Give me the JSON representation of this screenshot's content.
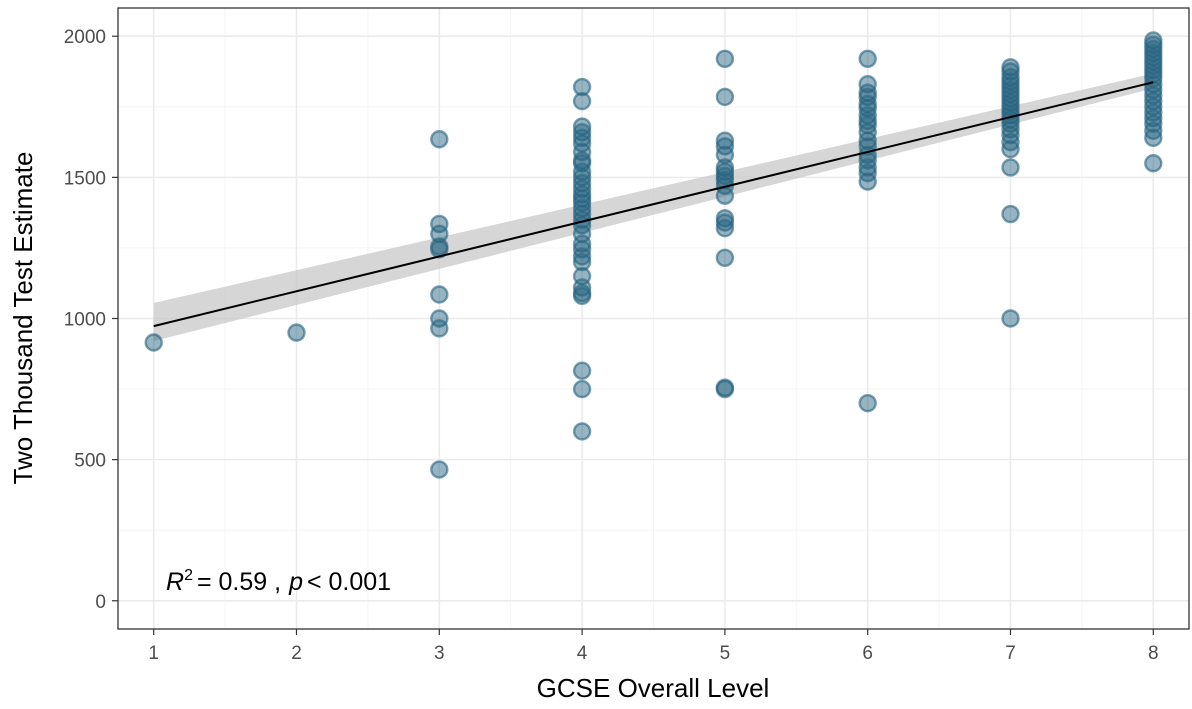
{
  "chart_data": {
    "type": "scatter",
    "title": "",
    "xlabel": "GCSE Overall Level",
    "ylabel": "Two Thousand Test Estimate",
    "xlim": [
      0.75,
      8.25
    ],
    "ylim": [
      -100,
      2100
    ],
    "x_ticks": [
      1,
      2,
      3,
      4,
      5,
      6,
      7,
      8
    ],
    "y_ticks": [
      0,
      500,
      1000,
      1500,
      2000
    ],
    "grid": true,
    "legend": "none",
    "colors": {
      "point_fill": "#2e6a85",
      "point_stroke": "#24627f",
      "fit_line": "#000000",
      "confidence_band": "#c8c8c8",
      "grid_major": "#ebebeb",
      "grid_minor": "#f5f5f5",
      "panel_border": "#333333"
    },
    "annotation": {
      "r_symbol": "R",
      "r_exponent": "2",
      "r_value": "= 0.59 ,",
      "p_symbol": "p",
      "p_value": "< 0.001"
    },
    "series": [
      {
        "points": [
          [
            1,
            915
          ],
          [
            2,
            950
          ],
          [
            3,
            465
          ],
          [
            3,
            965
          ],
          [
            3,
            1000
          ],
          [
            3,
            1085
          ],
          [
            3,
            1245
          ],
          [
            3,
            1255
          ],
          [
            3,
            1300
          ],
          [
            3,
            1335
          ],
          [
            3,
            1635
          ],
          [
            4,
            600
          ],
          [
            4,
            750
          ],
          [
            4,
            815
          ],
          [
            4,
            1080
          ],
          [
            4,
            1090
          ],
          [
            4,
            1110
          ],
          [
            4,
            1150
          ],
          [
            4,
            1200
          ],
          [
            4,
            1220
          ],
          [
            4,
            1245
          ],
          [
            4,
            1265
          ],
          [
            4,
            1300
          ],
          [
            4,
            1330
          ],
          [
            4,
            1350
          ],
          [
            4,
            1370
          ],
          [
            4,
            1390
          ],
          [
            4,
            1410
          ],
          [
            4,
            1425
          ],
          [
            4,
            1440
          ],
          [
            4,
            1460
          ],
          [
            4,
            1480
          ],
          [
            4,
            1500
          ],
          [
            4,
            1520
          ],
          [
            4,
            1550
          ],
          [
            4,
            1560
          ],
          [
            4,
            1590
          ],
          [
            4,
            1620
          ],
          [
            4,
            1640
          ],
          [
            4,
            1660
          ],
          [
            4,
            1680
          ],
          [
            4,
            1770
          ],
          [
            4,
            1820
          ],
          [
            5,
            750
          ],
          [
            5,
            755
          ],
          [
            5,
            1215
          ],
          [
            5,
            1320
          ],
          [
            5,
            1340
          ],
          [
            5,
            1355
          ],
          [
            5,
            1435
          ],
          [
            5,
            1470
          ],
          [
            5,
            1490
          ],
          [
            5,
            1505
          ],
          [
            5,
            1520
          ],
          [
            5,
            1535
          ],
          [
            5,
            1580
          ],
          [
            5,
            1610
          ],
          [
            5,
            1630
          ],
          [
            5,
            1785
          ],
          [
            5,
            1920
          ],
          [
            6,
            700
          ],
          [
            6,
            1485
          ],
          [
            6,
            1515
          ],
          [
            6,
            1535
          ],
          [
            6,
            1560
          ],
          [
            6,
            1580
          ],
          [
            6,
            1610
          ],
          [
            6,
            1630
          ],
          [
            6,
            1660
          ],
          [
            6,
            1685
          ],
          [
            6,
            1700
          ],
          [
            6,
            1720
          ],
          [
            6,
            1745
          ],
          [
            6,
            1760
          ],
          [
            6,
            1785
          ],
          [
            6,
            1800
          ],
          [
            6,
            1830
          ],
          [
            6,
            1920
          ],
          [
            7,
            1000
          ],
          [
            7,
            1370
          ],
          [
            7,
            1535
          ],
          [
            7,
            1600
          ],
          [
            7,
            1625
          ],
          [
            7,
            1650
          ],
          [
            7,
            1670
          ],
          [
            7,
            1690
          ],
          [
            7,
            1705
          ],
          [
            7,
            1720
          ],
          [
            7,
            1735
          ],
          [
            7,
            1750
          ],
          [
            7,
            1765
          ],
          [
            7,
            1780
          ],
          [
            7,
            1795
          ],
          [
            7,
            1810
          ],
          [
            7,
            1825
          ],
          [
            7,
            1840
          ],
          [
            7,
            1855
          ],
          [
            7,
            1875
          ],
          [
            7,
            1890
          ],
          [
            8,
            1550
          ],
          [
            8,
            1640
          ],
          [
            8,
            1665
          ],
          [
            8,
            1690
          ],
          [
            8,
            1710
          ],
          [
            8,
            1730
          ],
          [
            8,
            1750
          ],
          [
            8,
            1770
          ],
          [
            8,
            1790
          ],
          [
            8,
            1810
          ],
          [
            8,
            1830
          ],
          [
            8,
            1850
          ],
          [
            8,
            1865
          ],
          [
            8,
            1880
          ],
          [
            8,
            1895
          ],
          [
            8,
            1910
          ],
          [
            8,
            1925
          ],
          [
            8,
            1940
          ],
          [
            8,
            1955
          ],
          [
            8,
            1970
          ],
          [
            8,
            1985
          ]
        ]
      }
    ],
    "fit": {
      "x": [
        1,
        8
      ],
      "y": [
        973,
        1837
      ],
      "ci_lower": [
        920,
        1815
      ],
      "ci_upper": [
        1055,
        1868
      ]
    }
  }
}
